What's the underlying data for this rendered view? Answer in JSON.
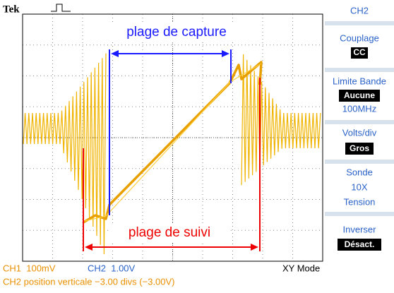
{
  "header": {
    "brand": "Tek"
  },
  "annotations": {
    "capture": "plage de capture",
    "tracking": "plage de suivi"
  },
  "menu": {
    "title": "CH2",
    "coupling": {
      "label": "Couplage",
      "value": "CC"
    },
    "bandwidth": {
      "label": "Limite Bande",
      "value": "Aucune",
      "detail": "100MHz"
    },
    "volts": {
      "label": "Volts/div",
      "value": "Gros"
    },
    "probe": {
      "label": "Sonde",
      "details": [
        "10X",
        "Tension"
      ]
    },
    "invert": {
      "label": "Inverser",
      "value": "Désact."
    }
  },
  "status": {
    "ch1": "CH1  100mV",
    "ch2": "CH2  1.00V",
    "mode": "XY Mode",
    "position": "CH2 position verticale −3.00 divs (−3.00V)"
  }
}
